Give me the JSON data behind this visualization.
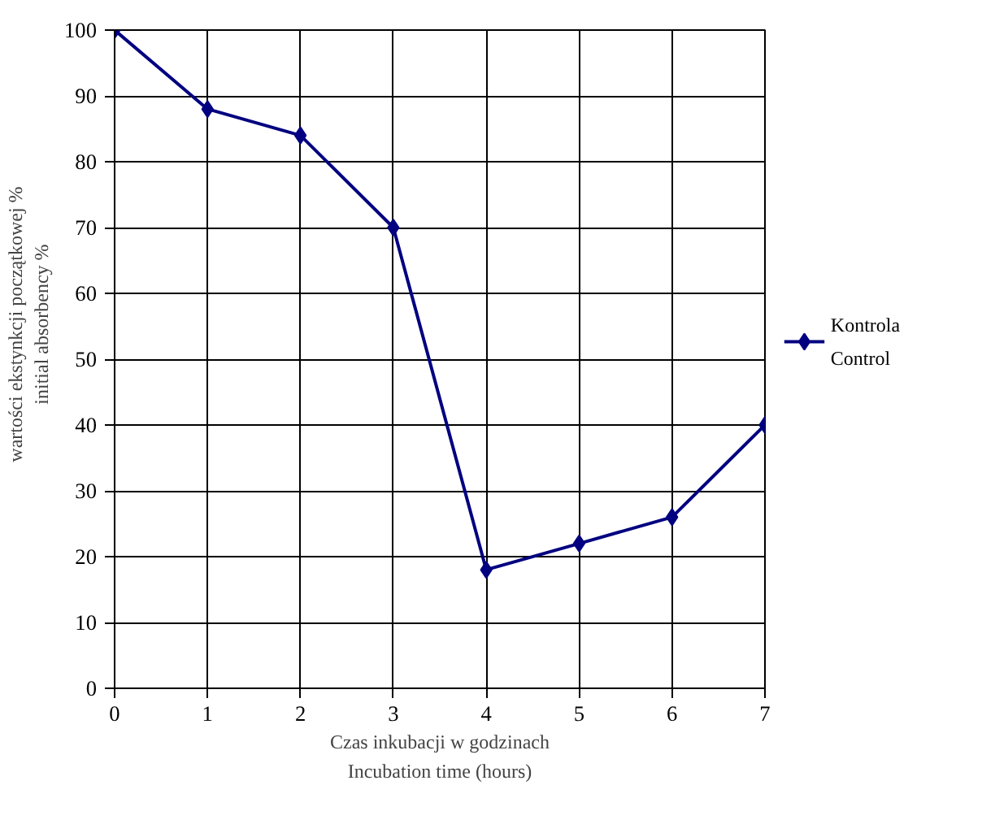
{
  "chart_data": {
    "type": "line",
    "xlabel": "Czas inkubacji w godzinach\nIncubation time (hours)",
    "ylabel": "wartości ekstynkcji początkowej  %\ninitial absorbency  %",
    "x": [
      0,
      1,
      2,
      3,
      4,
      5,
      6,
      7
    ],
    "series": [
      {
        "name": "Kontrola\nControl",
        "color": "#000080",
        "values": [
          100,
          88,
          84,
          70,
          18,
          22,
          26,
          40
        ]
      }
    ],
    "xlim": [
      0,
      7
    ],
    "xticks": [
      0,
      1,
      2,
      3,
      4,
      5,
      6,
      7
    ],
    "ylim": [
      0,
      100
    ],
    "yticks": [
      0,
      10,
      20,
      30,
      40,
      50,
      60,
      70,
      80,
      90,
      100
    ],
    "grid": true,
    "legend": "right",
    "marker": "diamond",
    "line_style": "solid"
  }
}
